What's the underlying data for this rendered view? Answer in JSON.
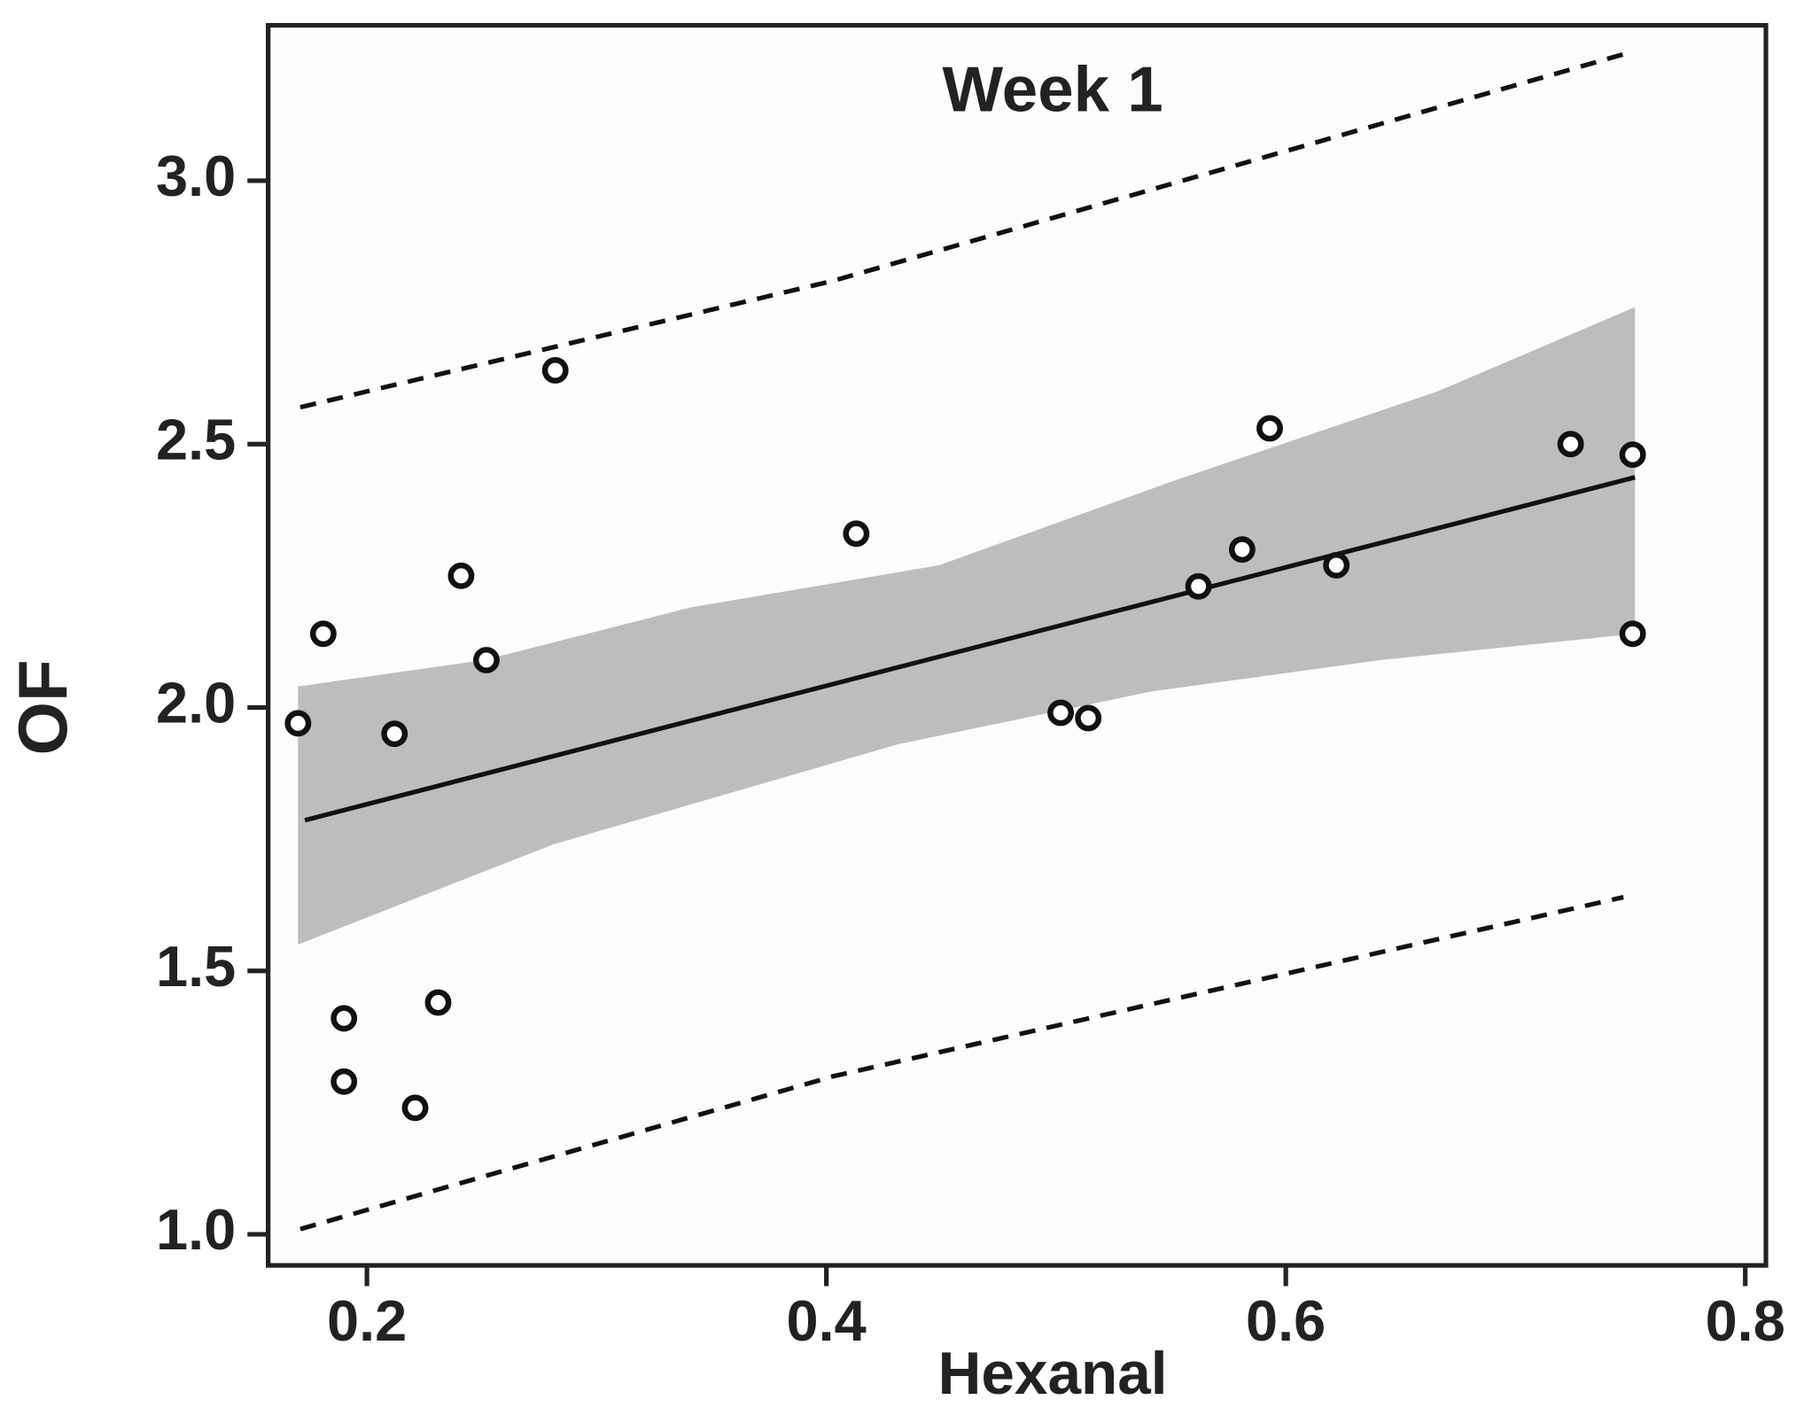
{
  "chart_data": {
    "type": "scatter",
    "title": "Week 1",
    "x_label": "Hexanal",
    "y_label": "OF",
    "x": [
      0.17,
      0.181,
      0.19,
      0.19,
      0.212,
      0.221,
      0.231,
      0.241,
      0.252,
      0.282,
      0.413,
      0.502,
      0.514,
      0.562,
      0.581,
      0.593,
      0.622,
      0.724,
      0.751,
      0.751
    ],
    "values": [
      1.97,
      2.14,
      1.41,
      1.29,
      1.95,
      1.24,
      1.44,
      2.25,
      2.09,
      2.64,
      2.33,
      1.99,
      1.98,
      2.23,
      2.3,
      2.53,
      2.27,
      2.5,
      2.48,
      2.14
    ],
    "color": "#111111",
    "fit": {
      "x": [
        0.173,
        0.752
      ],
      "values": [
        1.786,
        2.437
      ],
      "color": "#111111"
    },
    "band": {
      "color": "#bcbdbf",
      "upper": {
        "x": [
          0.17,
          0.251,
          0.341,
          0.449,
          0.551,
          0.666,
          0.752
        ],
        "values": [
          2.04,
          2.09,
          2.19,
          2.27,
          2.43,
          2.6,
          2.76
        ]
      },
      "lower": {
        "x": [
          0.17,
          0.281,
          0.431,
          0.541,
          0.641,
          0.752
        ],
        "values": [
          1.55,
          1.74,
          1.93,
          2.03,
          2.09,
          2.14
        ]
      }
    },
    "prediction_interval": {
      "color": "#111111",
      "upper": {
        "x": [
          0.171,
          0.403,
          0.747
        ],
        "values": [
          2.57,
          2.81,
          3.24
        ]
      },
      "lower": {
        "x": [
          0.171,
          0.403,
          0.747
        ],
        "values": [
          1.01,
          1.3,
          1.64
        ]
      }
    },
    "xlim": [
      0.157,
      0.809
    ],
    "ylim": [
      0.941,
      3.295
    ],
    "xticks": [
      0.2,
      0.4,
      0.6,
      0.8
    ],
    "yticks": [
      {
        "value": 1.0,
        "label": "1.0"
      },
      1.5,
      {
        "value": 2.0,
        "label": "2.0"
      },
      2.5,
      {
        "value": 3.0,
        "label": "3.0"
      }
    ]
  }
}
